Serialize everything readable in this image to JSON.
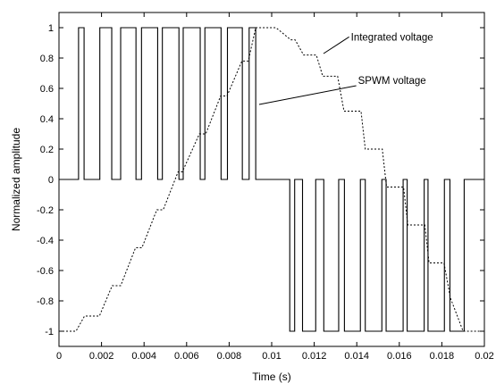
{
  "chart_data": {
    "type": "line",
    "title": "",
    "xlabel": "Time (s)",
    "ylabel": "Normalized amplitude",
    "xlim": [
      0,
      0.02
    ],
    "ylim": [
      -1.1,
      1.1
    ],
    "grid": false,
    "xticks": [
      0,
      0.002,
      0.004,
      0.006,
      0.008,
      0.01,
      0.012,
      0.014,
      0.016,
      0.018,
      0.02
    ],
    "xtick_labels": [
      "0",
      "0.002",
      "0.004",
      "0.006",
      "0.008",
      "0.01",
      "0.012",
      "0.014",
      "0.016",
      "0.018",
      "0.02"
    ],
    "yticks": [
      -1,
      -0.8,
      -0.6,
      -0.4,
      -0.2,
      0,
      0.2,
      0.4,
      0.6,
      0.8,
      1
    ],
    "ytick_labels": [
      "-1",
      "-0.8",
      "-0.6",
      "-0.4",
      "-0.2",
      "0",
      "0.2",
      "0.4",
      "0.6",
      "0.8",
      "1"
    ],
    "series": [
      {
        "name": "SPWM voltage",
        "style": "solid",
        "color": "#000000",
        "pulses_positive": [
          [
            0.00092,
            0.00118
          ],
          [
            0.00192,
            0.00248
          ],
          [
            0.0029,
            0.00362
          ],
          [
            0.00388,
            0.00464
          ],
          [
            0.00486,
            0.00564
          ],
          [
            0.00584,
            0.00664
          ],
          [
            0.00686,
            0.00762
          ],
          [
            0.00792,
            0.00862
          ],
          [
            0.00894,
            0.00925
          ]
        ],
        "pulses_negative": [
          [
            0.01085,
            0.01108
          ],
          [
            0.01145,
            0.01207
          ],
          [
            0.01245,
            0.01315
          ],
          [
            0.01342,
            0.01417
          ],
          [
            0.0144,
            0.01518
          ],
          [
            0.01538,
            0.01618
          ],
          [
            0.01637,
            0.01717
          ],
          [
            0.01735,
            0.01812
          ],
          [
            0.01838,
            0.01905
          ]
        ]
      },
      {
        "name": "Integrated voltage",
        "style": "dotted",
        "color": "#000000",
        "x": [
          0,
          0.0008,
          0.0012,
          0.0019,
          0.0025,
          0.0029,
          0.0036,
          0.0039,
          0.0046,
          0.0049,
          0.0056,
          0.0058,
          0.0066,
          0.0069,
          0.0076,
          0.0079,
          0.0086,
          0.0089,
          0.00925,
          0.0102,
          0.0109,
          0.0111,
          0.0115,
          0.0121,
          0.0124,
          0.0131,
          0.0134,
          0.0142,
          0.0144,
          0.0152,
          0.0154,
          0.0162,
          0.0164,
          0.0172,
          0.0174,
          0.0181,
          0.0184,
          0.019,
          0.02
        ],
        "y": [
          -1,
          -1,
          -0.9,
          -0.9,
          -0.7,
          -0.7,
          -0.45,
          -0.45,
          -0.2,
          -0.2,
          0.05,
          0.05,
          0.3,
          0.3,
          0.55,
          0.55,
          0.78,
          0.78,
          1,
          1,
          0.92,
          0.92,
          0.82,
          0.82,
          0.68,
          0.68,
          0.45,
          0.45,
          0.2,
          0.2,
          -0.05,
          -0.05,
          -0.3,
          -0.3,
          -0.55,
          -0.55,
          -0.78,
          -1,
          -1
        ]
      }
    ],
    "annotations": [
      {
        "text": "Integrated voltage",
        "x": 0.0128,
        "y": 0.898
      },
      {
        "text": "SPWM voltage",
        "x": 0.0128,
        "y": 0.606
      }
    ]
  }
}
